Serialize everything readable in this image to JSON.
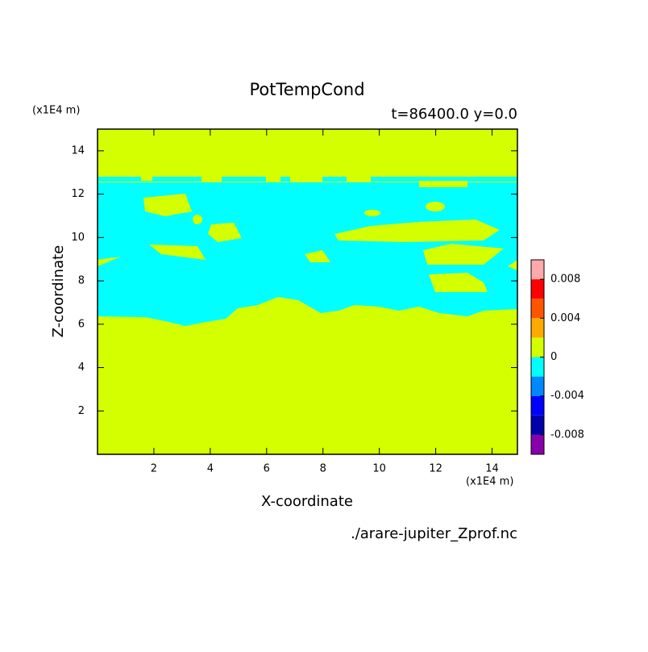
{
  "chart_data": {
    "type": "contour",
    "title": "PotTempCond",
    "subtitle": "t=86400.0 y=0.0",
    "x_label": "X-coordinate",
    "y_label": "Z-coordinate",
    "x_unit": "(x1E4 m)",
    "y_unit": "(x1E4 m)",
    "source": "./arare-jupiter_Zprof.nc",
    "xlim": [
      0,
      14.9
    ],
    "xticks": [
      2,
      4,
      6,
      8,
      10,
      12,
      14
    ],
    "ylim": [
      0,
      15
    ],
    "yticks": [
      2,
      4,
      6,
      8,
      10,
      12,
      14
    ],
    "levels": [
      -0.01,
      -0.008,
      -0.006,
      -0.004,
      -0.002,
      0,
      0.002,
      0.004,
      0.006,
      0.008,
      0.01
    ],
    "colors": [
      "#8800aa",
      "#0000aa",
      "#0000ff",
      "#0088ff",
      "#00ffff",
      "#d4ff00",
      "#ffaa00",
      "#ff5500",
      "#ff0000",
      "#ffaaaa"
    ],
    "colorbar_ticks": [
      -0.008,
      -0.004,
      0,
      0.004,
      0.008
    ]
  }
}
